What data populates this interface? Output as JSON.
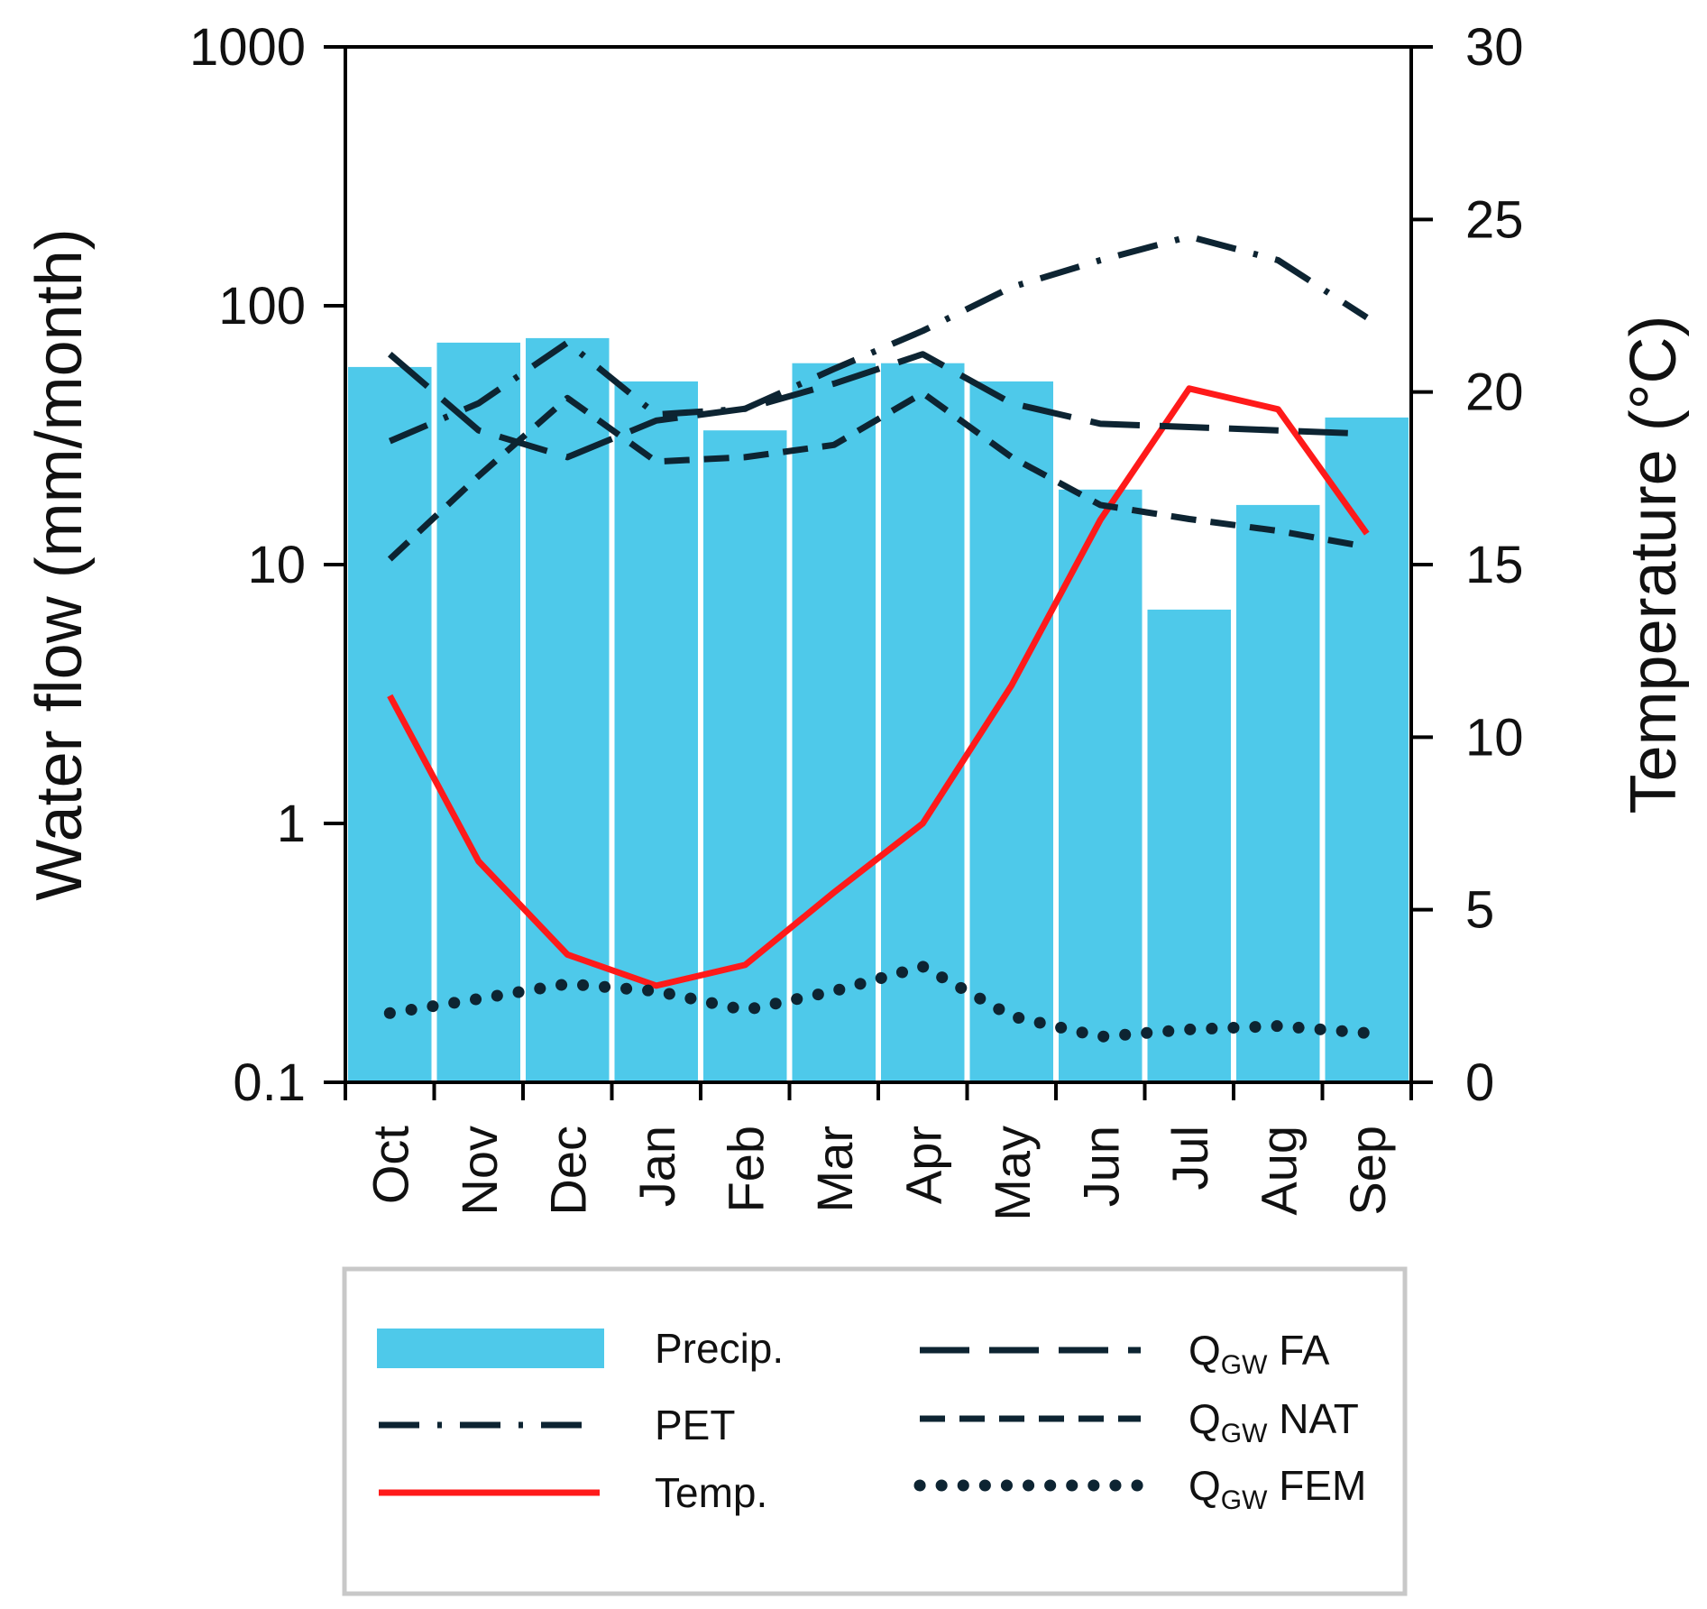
{
  "chart_data": {
    "type": "bar+line",
    "categories": [
      "Oct",
      "Nov",
      "Dec",
      "Jan",
      "Feb",
      "Mar",
      "Apr",
      "May",
      "Jun",
      "Jul",
      "Aug",
      "Sep"
    ],
    "left_axis": {
      "title": "Water flow (mm/month)",
      "scale": "log",
      "range": [
        0.1,
        1000
      ],
      "ticks": [
        {
          "value": 0.1,
          "label": "0.1"
        },
        {
          "value": 1,
          "label": "1"
        },
        {
          "value": 10,
          "label": "10"
        },
        {
          "value": 100,
          "label": "100"
        },
        {
          "value": 1000,
          "label": "1000"
        }
      ]
    },
    "right_axis": {
      "title": "Temperature (°C)",
      "scale": "linear",
      "range": [
        0,
        30
      ],
      "ticks": [
        {
          "value": 0,
          "label": "0"
        },
        {
          "value": 5,
          "label": "5"
        },
        {
          "value": 10,
          "label": "10"
        },
        {
          "value": 15,
          "label": "15"
        },
        {
          "value": 20,
          "label": "20"
        },
        {
          "value": 25,
          "label": "25"
        },
        {
          "value": 30,
          "label": "30"
        }
      ]
    },
    "series": [
      {
        "name": "Precip.",
        "type": "bar",
        "axis": "left",
        "color": "#4ec9ea",
        "values": [
          58,
          72,
          75,
          51,
          33,
          60,
          60,
          51,
          19.5,
          6.7,
          17,
          37
        ]
      },
      {
        "name": "PET",
        "type": "line",
        "axis": "left",
        "style": "dashdot",
        "color": "#0d2432",
        "values": [
          30,
          42,
          72,
          38,
          40,
          57,
          80,
          118,
          150,
          185,
          150,
          90
        ]
      },
      {
        "name": "Temp.",
        "type": "line",
        "axis": "right",
        "style": "solid",
        "color": "#ff1a1a",
        "values": [
          11.2,
          6.4,
          3.7,
          2.8,
          3.4,
          5.5,
          7.5,
          11.5,
          16.3,
          20.1,
          19.5,
          15.9
        ]
      },
      {
        "name": "FA",
        "prefix": "Q",
        "subscript": "GW",
        "type": "line",
        "axis": "left",
        "style": "longdash",
        "color": "#0d2432",
        "values": [
          65,
          33,
          26,
          36,
          40,
          50,
          65,
          42,
          35,
          34,
          33,
          32
        ]
      },
      {
        "name": "NAT",
        "prefix": "Q",
        "subscript": "GW",
        "type": "line",
        "axis": "left",
        "style": "dash",
        "color": "#0d2432",
        "values": [
          10.5,
          22,
          44,
          25,
          26,
          29,
          46,
          26,
          17,
          15,
          13.5,
          11.7
        ]
      },
      {
        "name": "FEM",
        "prefix": "Q",
        "subscript": "GW",
        "type": "line",
        "axis": "left",
        "style": "dot",
        "color": "#0d2432",
        "values": [
          0.185,
          0.21,
          0.24,
          0.225,
          0.19,
          0.225,
          0.28,
          0.18,
          0.15,
          0.16,
          0.165,
          0.155
        ]
      }
    ],
    "legend_position": "bottom"
  }
}
